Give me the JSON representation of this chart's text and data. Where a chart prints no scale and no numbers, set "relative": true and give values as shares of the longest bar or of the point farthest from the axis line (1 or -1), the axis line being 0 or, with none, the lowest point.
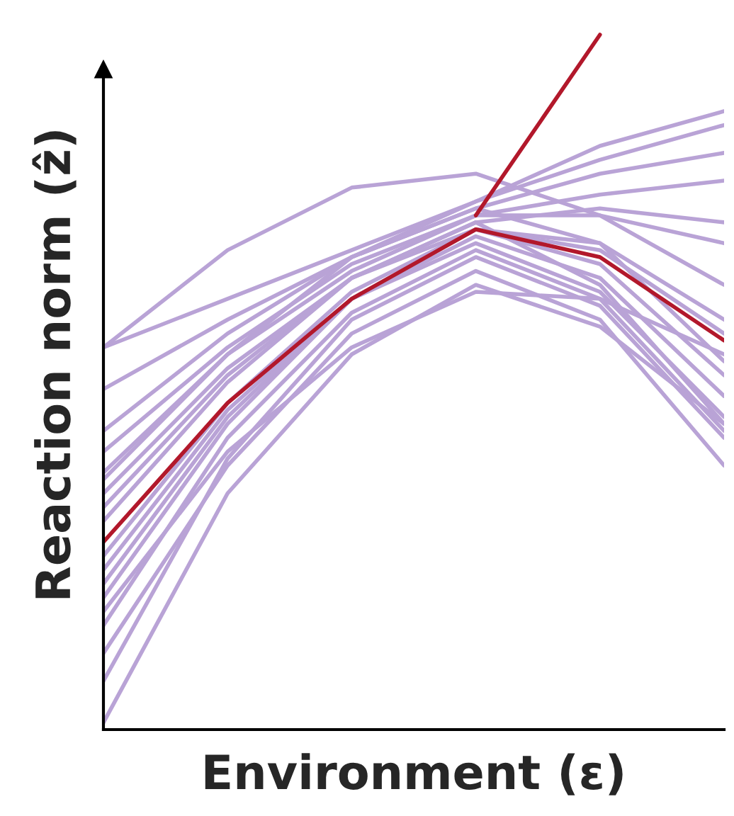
{
  "chart_data": {
    "type": "line",
    "relative": true,
    "xlabel": "Environment (ε)",
    "ylabel": "Reaction norm (ẑ)",
    "categories": [
      null,
      null,
      null,
      null,
      null,
      null
    ],
    "legend": false,
    "marker": "none",
    "line_style": "solid",
    "series": [
      {
        "color": "#b9a3d6",
        "values": [
          0.55,
          0.69,
          0.78,
          0.8,
          0.74,
          0.64
        ]
      },
      {
        "color": "#b9a3d6",
        "values": [
          0.55,
          0.62,
          0.69,
          0.76,
          0.84,
          0.89
        ]
      },
      {
        "color": "#b9a3d6",
        "values": [
          0.49,
          0.59,
          0.68,
          0.76,
          0.82,
          0.87
        ]
      },
      {
        "color": "#b9a3d6",
        "values": [
          0.43,
          0.57,
          0.68,
          0.75,
          0.8,
          0.83
        ]
      },
      {
        "color": "#b9a3d6",
        "values": [
          0.37,
          0.54,
          0.66,
          0.74,
          0.77,
          0.79
        ]
      },
      {
        "color": "#b9a3d6",
        "values": [
          0.34,
          0.52,
          0.65,
          0.73,
          0.75,
          0.73
        ]
      },
      {
        "color": "#b9a3d6",
        "values": [
          0.4,
          0.55,
          0.67,
          0.74,
          0.74,
          0.7
        ]
      },
      {
        "color": "#b9a3d6",
        "values": [
          0.36,
          0.54,
          0.68,
          0.75,
          0.7,
          0.53
        ]
      },
      {
        "color": "#b9a3d6",
        "values": [
          0.32,
          0.51,
          0.65,
          0.72,
          0.67,
          0.51
        ]
      },
      {
        "color": "#b9a3d6",
        "values": [
          0.23,
          0.46,
          0.62,
          0.71,
          0.65,
          0.48
        ]
      },
      {
        "color": "#b9a3d6",
        "values": [
          0.19,
          0.44,
          0.62,
          0.7,
          0.63,
          0.45
        ]
      },
      {
        "color": "#b9a3d6",
        "values": [
          0.15,
          0.42,
          0.6,
          0.69,
          0.62,
          0.43
        ]
      },
      {
        "color": "#b9a3d6",
        "values": [
          0.11,
          0.38,
          0.57,
          0.66,
          0.59,
          0.38
        ]
      },
      {
        "color": "#b9a3d6",
        "values": [
          0.01,
          0.34,
          0.54,
          0.64,
          0.58,
          0.44
        ]
      },
      {
        "color": "#b9a3d6",
        "values": [
          0.17,
          0.4,
          0.55,
          0.63,
          0.62,
          0.54
        ]
      },
      {
        "color": "#b9a3d6",
        "values": [
          0.25,
          0.47,
          0.63,
          0.72,
          0.69,
          0.57
        ]
      },
      {
        "color": "#b9a3d6",
        "values": [
          0.3,
          0.5,
          0.65,
          0.73,
          0.64,
          0.44
        ]
      },
      {
        "color": "#b9a3d6",
        "values": [
          0.07,
          0.39,
          0.59,
          0.68,
          0.61,
          0.42
        ]
      },
      {
        "color": "#b9a3d6",
        "values": [
          0.21,
          0.45,
          0.62,
          0.72,
          0.7,
          0.59
        ]
      },
      {
        "color": "#b2182b",
        "values": [
          0.27,
          0.47,
          0.62,
          0.72,
          0.68,
          0.56
        ]
      },
      {
        "color": "#b2182b",
        "values": [
          null,
          null,
          null,
          0.74,
          1.0,
          null
        ]
      }
    ]
  }
}
